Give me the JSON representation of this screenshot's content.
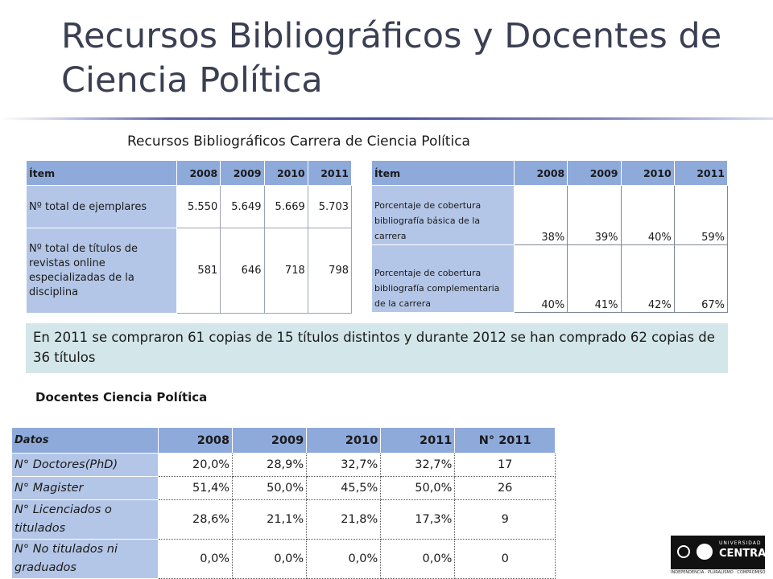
{
  "title": "Recursos Bibliográficos y Docentes de Ciencia Política",
  "subtitle": "Recursos Bibliográficos Carrera de Ciencia Política",
  "table1": {
    "headers": [
      "Ítem",
      "2008",
      "2009",
      "2010",
      "2011"
    ],
    "rows": [
      {
        "label": "Nº total de ejemplares",
        "values": [
          "5.550",
          "5.649",
          "5.669",
          "5.703"
        ]
      },
      {
        "label": "Nº total de títulos de revistas online especializadas de la disciplina",
        "values": [
          "581",
          "646",
          "718",
          "798"
        ]
      }
    ]
  },
  "table2": {
    "headers": [
      "Ítem",
      "2008",
      "2009",
      "2010",
      "2011"
    ],
    "rows": [
      {
        "label": "Porcentaje de cobertura bibliografía básica de la carrera",
        "values": [
          "38%",
          "39%",
          "40%",
          "59%"
        ]
      },
      {
        "label": "Porcentaje de cobertura bibliografía complementaria de la carrera",
        "values": [
          "40%",
          "41%",
          "42%",
          "67%"
        ]
      }
    ]
  },
  "note": "En 2011 se compraron 61 copias de 15 títulos distintos y durante 2012 se han comprado 62 copias de 36 títulos",
  "docentes_heading": "Docentes Ciencia Política",
  "table3": {
    "headers": [
      "Datos",
      "2008",
      "2009",
      "2010",
      "2011",
      "N° 2011"
    ],
    "rows": [
      {
        "label": "N° Doctores(PhD)",
        "values": [
          "20,0%",
          "28,9%",
          "32,7%",
          "32,7%"
        ],
        "count": "17"
      },
      {
        "label": "N° Magister",
        "values": [
          "51,4%",
          "50,0%",
          "45,5%",
          "50,0%"
        ],
        "count": "26"
      },
      {
        "label": "N° Licenciados o titulados",
        "values": [
          "28,6%",
          "21,1%",
          "21,8%",
          "17,3%"
        ],
        "count": "9"
      },
      {
        "label": "N° No titulados ni graduados",
        "values": [
          "0,0%",
          "0,0%",
          "0,0%",
          "0,0%"
        ],
        "count": "0"
      }
    ]
  },
  "logo": {
    "line1": "UNIVERSIDAD",
    "line2": "CENTRAL",
    "tagline": "INDEPENDENCIA · PLURALISMO · COMPROMISO"
  }
}
